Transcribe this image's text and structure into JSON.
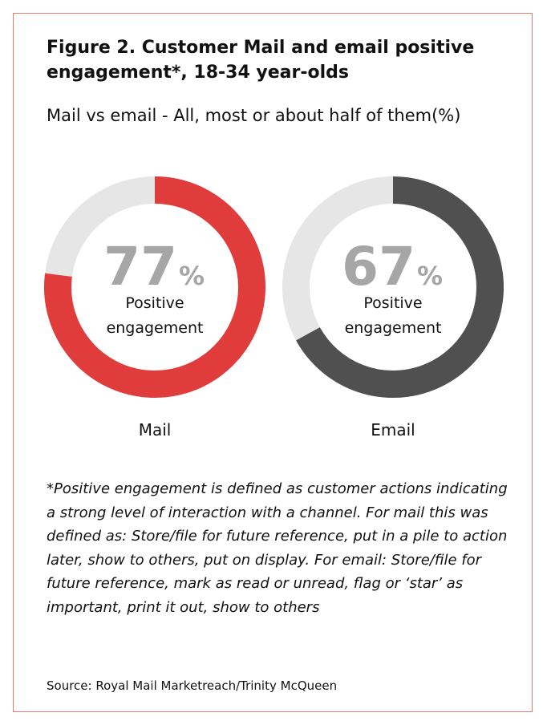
{
  "figure": {
    "title": "Figure 2. Customer Mail and email positive engagement*, 18-34 year-olds",
    "subtitle": "Mail vs email - All, most or about half of them(%)",
    "footnote": "*Positive engagement is defined as customer actions indicating a strong level of interaction with a channel.  For mail this was defined as: Store/file for future reference, put in a pile to action later, show to others, put on display. For email: Store/file for future reference, mark as read or unread, flag or ‘star’ as important, print it out, show to others",
    "source": "Source: Royal Mail Marketreach/Trinity McQueen",
    "border_color": "#e07a6c"
  },
  "chart_data": {
    "type": "pie",
    "style": "donut",
    "title": "Mail vs email - All, most or about half of them(%)",
    "unit": "%",
    "inner_label_line1": "Positive",
    "inner_label_line2": "engagement",
    "track_color": "#e6e6e6",
    "value_text_color": "#a6a6a6",
    "series": [
      {
        "name": "Mail",
        "value": 77,
        "value_label": "77",
        "color": "#e03c3c"
      },
      {
        "name": "Email",
        "value": 67,
        "value_label": "67",
        "color": "#505050"
      }
    ]
  }
}
